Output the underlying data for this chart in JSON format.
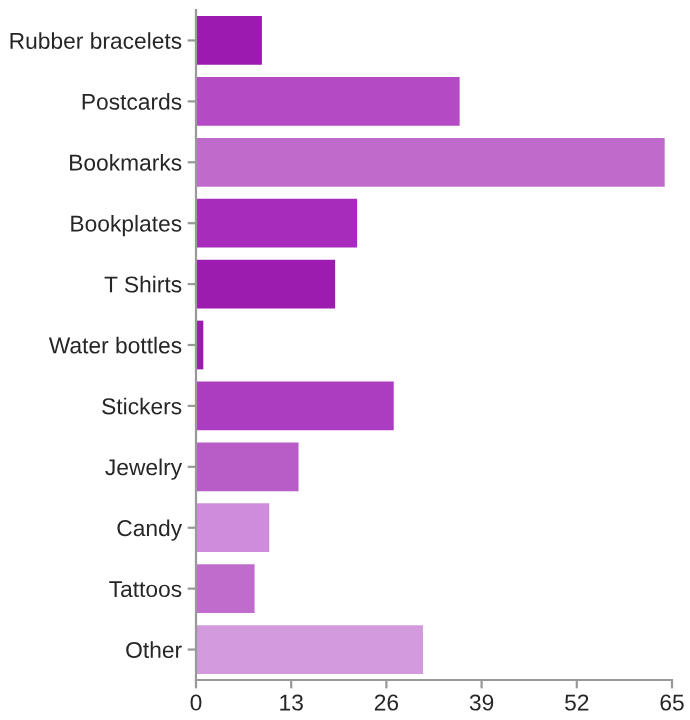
{
  "chart_data": {
    "type": "bar",
    "orientation": "horizontal",
    "categories": [
      "Rubber bracelets",
      "Postcards",
      "Bookmarks",
      "Bookplates",
      "T Shirts",
      "Water bottles",
      "Stickers",
      "Jewelry",
      "Candy",
      "Tattoos",
      "Other"
    ],
    "values": [
      9,
      36,
      64,
      22,
      19,
      1,
      27,
      14,
      10,
      8,
      31
    ],
    "colors": [
      "#9c1ab0",
      "#b44ac4",
      "#c06acc",
      "#a82cbc",
      "#9c1cb0",
      "#9c1ab0",
      "#ac3cc0",
      "#b85cc8",
      "#d08cdc",
      "#c06ccc",
      "#d49ade"
    ],
    "xlim": [
      0,
      65
    ],
    "xticks": [
      0,
      13,
      26,
      39,
      52,
      65
    ],
    "grid": false
  }
}
